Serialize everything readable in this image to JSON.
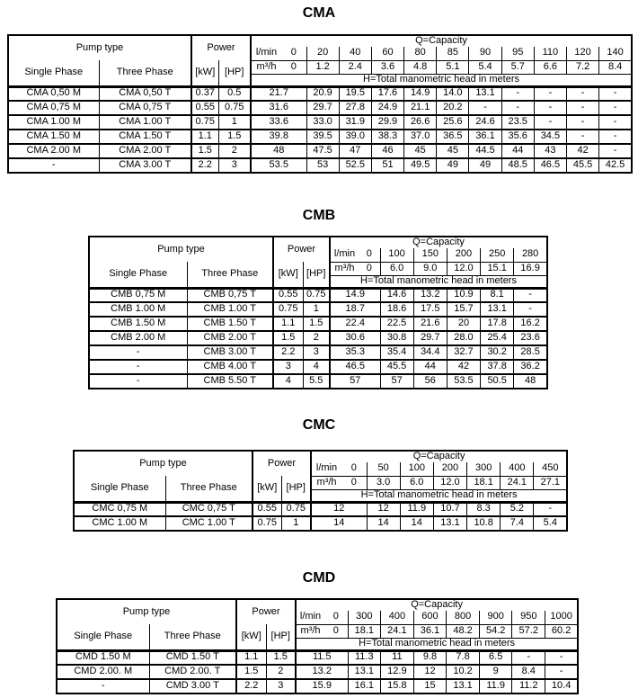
{
  "page": {
    "background": "#ffffff",
    "text_color": "#000000",
    "border_color": "#000000"
  },
  "tables": [
    {
      "id": "CMA",
      "title": "CMA",
      "header": {
        "pump_type": "Pump type",
        "single_phase": "Single Phase",
        "three_phase": "Three Phase",
        "power": "Power",
        "kw_unit": "[kW]",
        "hp_unit": "[HP]",
        "q_capacity": "Q=Capacity",
        "flow_lmin_label": "l/min",
        "flow_m3h_label": "m³/h",
        "head_note": "H=Total manometric head in meters",
        "lmin": [
          "0",
          "20",
          "40",
          "60",
          "80",
          "85",
          "90",
          "95",
          "110",
          "120",
          "140"
        ],
        "m3h": [
          "0",
          "1.2",
          "2.4",
          "3.6",
          "4.8",
          "5.1",
          "5.4",
          "5.7",
          "6.6",
          "7.2",
          "8.4"
        ]
      },
      "rows": [
        {
          "single": "CMA 0,50 M",
          "three": "CMA 0,50 T",
          "kw": "0.37",
          "hp": "0.5",
          "values": [
            "21.7",
            "20.9",
            "19.5",
            "17.6",
            "14.9",
            "14.0",
            "13.1",
            "-",
            "-",
            "-",
            "-"
          ]
        },
        {
          "single": "CMA 0,75 M",
          "three": "CMA 0,75 T",
          "kw": "0.55",
          "hp": "0.75",
          "values": [
            "31.6",
            "29.7",
            "27.8",
            "24.9",
            "21.1",
            "20.2",
            "-",
            "-",
            "-",
            "-",
            "-"
          ]
        },
        {
          "single": "CMA 1.00 M",
          "three": "CMA 1.00 T",
          "kw": "0.75",
          "hp": "1",
          "values": [
            "33.6",
            "33.0",
            "31.9",
            "29.9",
            "26.6",
            "25.6",
            "24.6",
            "23.5",
            "-",
            "-",
            "-"
          ]
        },
        {
          "single": "CMA 1.50 M",
          "three": "CMA 1.50 T",
          "kw": "1.1",
          "hp": "1.5",
          "values": [
            "39.8",
            "39.5",
            "39.0",
            "38.3",
            "37.0",
            "36.5",
            "36.1",
            "35.6",
            "34.5",
            "-",
            "-"
          ]
        },
        {
          "single": "CMA 2.00 M",
          "three": "CMA 2.00 T",
          "kw": "1.5",
          "hp": "2",
          "values": [
            "48",
            "47.5",
            "47",
            "46",
            "45",
            "45",
            "44.5",
            "44",
            "43",
            "42",
            "-"
          ]
        },
        {
          "single": "-",
          "three": "CMA 3.00 T",
          "kw": "2.2",
          "hp": "3",
          "values": [
            "53.5",
            "53",
            "52.5",
            "51",
            "49.5",
            "49",
            "49",
            "48.5",
            "46.5",
            "45.5",
            "42.5"
          ]
        }
      ]
    },
    {
      "id": "CMB",
      "title": "CMB",
      "header": {
        "pump_type": "Pump type",
        "single_phase": "Single Phase",
        "three_phase": "Three Phase",
        "power": "Power",
        "kw_unit": "[kW]",
        "hp_unit": "[HP]",
        "q_capacity": "Q=Capacity",
        "flow_lmin_label": "l/min",
        "flow_m3h_label": "m³/h",
        "head_note": "H=Total manometric head in meters",
        "lmin": [
          "0",
          "100",
          "150",
          "200",
          "250",
          "280"
        ],
        "m3h": [
          "0",
          "6.0",
          "9.0",
          "12.0",
          "15.1",
          "16.9"
        ]
      },
      "rows": [
        {
          "single": "CMB 0,75 M",
          "three": "CMB 0,75 T",
          "kw": "0.55",
          "hp": "0.75",
          "values": [
            "14.9",
            "14.6",
            "13.2",
            "10.9",
            "8.1",
            "-"
          ]
        },
        {
          "single": "CMB 1.00 M",
          "three": "CMB 1.00 T",
          "kw": "0.75",
          "hp": "1",
          "values": [
            "18.7",
            "18.6",
            "17.5",
            "15.7",
            "13.1",
            "-"
          ]
        },
        {
          "single": "CMB 1.50 M",
          "three": "CMB 1.50 T",
          "kw": "1.1",
          "hp": "1.5",
          "values": [
            "22.4",
            "22.5",
            "21.6",
            "20",
            "17.8",
            "16.2"
          ]
        },
        {
          "single": "CMB 2.00 M",
          "three": "CMB 2.00 T",
          "kw": "1.5",
          "hp": "2",
          "values": [
            "30.6",
            "30.8",
            "29.7",
            "28.0",
            "25.4",
            "23.6"
          ]
        },
        {
          "single": "-",
          "three": "CMB 3.00 T",
          "kw": "2.2",
          "hp": "3",
          "values": [
            "35.3",
            "35.4",
            "34.4",
            "32.7",
            "30.2",
            "28.5"
          ]
        },
        {
          "single": "-",
          "three": "CMB 4.00 T",
          "kw": "3",
          "hp": "4",
          "values": [
            "46.5",
            "45.5",
            "44",
            "42",
            "37.8",
            "36.2"
          ]
        },
        {
          "single": "-",
          "three": "CMB 5.50 T",
          "kw": "4",
          "hp": "5.5",
          "values": [
            "57",
            "57",
            "56",
            "53.5",
            "50.5",
            "48"
          ]
        }
      ]
    },
    {
      "id": "CMC",
      "title": "CMC",
      "header": {
        "pump_type": "Pump type",
        "single_phase": "Single Phase",
        "three_phase": "Three Phase",
        "power": "Power",
        "kw_unit": "[kW]",
        "hp_unit": "[HP]",
        "q_capacity": "Q=Capacity",
        "flow_lmin_label": "l/min",
        "flow_m3h_label": "m³/h",
        "head_note": "H=Total manometric head in meters",
        "lmin": [
          "0",
          "50",
          "100",
          "200",
          "300",
          "400",
          "450"
        ],
        "m3h": [
          "0",
          "3.0",
          "6.0",
          "12.0",
          "18.1",
          "24.1",
          "27.1"
        ]
      },
      "rows": [
        {
          "single": "CMC 0,75 M",
          "three": "CMC 0,75 T",
          "kw": "0.55",
          "hp": "0.75",
          "values": [
            "12",
            "12",
            "11.9",
            "10.7",
            "8.3",
            "5.2",
            "-"
          ]
        },
        {
          "single": "CMC 1.00 M",
          "three": "CMC 1.00 T",
          "kw": "0.75",
          "hp": "1",
          "values": [
            "14",
            "14",
            "14",
            "13.1",
            "10.8",
            "7.4",
            "5.4"
          ]
        }
      ]
    },
    {
      "id": "CMD",
      "title": "CMD",
      "header": {
        "pump_type": "Pump type",
        "single_phase": "Single Phase",
        "three_phase": "Three Phase",
        "power": "Power",
        "kw_unit": "[kW]",
        "hp_unit": "[HP]",
        "q_capacity": "Q=Capacity",
        "flow_lmin_label": "l/min",
        "flow_m3h_label": "m³/h",
        "head_note": "H=Total manometric head in meters",
        "lmin": [
          "0",
          "300",
          "400",
          "600",
          "800",
          "900",
          "950",
          "1000"
        ],
        "m3h": [
          "0",
          "18.1",
          "24.1",
          "36.1",
          "48.2",
          "54.2",
          "57.2",
          "60.2"
        ]
      },
      "rows": [
        {
          "single": "CMD 1.50 M",
          "three": "CMD 1.50 T",
          "kw": "1.1",
          "hp": "1.5",
          "values": [
            "11.5",
            "11.3",
            "11",
            "9.8",
            "7.8",
            "6.5",
            "-",
            "-"
          ]
        },
        {
          "single": "CMD 2.00. M",
          "three": "CMD 2.00. T",
          "kw": "1.5",
          "hp": "2",
          "values": [
            "13.2",
            "13.1",
            "12.9",
            "12",
            "10.2",
            "9",
            "8.4",
            "-"
          ]
        },
        {
          "single": "-",
          "three": "CMD 3.00 T",
          "kw": "2.2",
          "hp": "3",
          "values": [
            "15.9",
            "16.1",
            "15.8",
            "15",
            "13.1",
            "11.9",
            "11.2",
            "10.4"
          ]
        }
      ]
    }
  ]
}
